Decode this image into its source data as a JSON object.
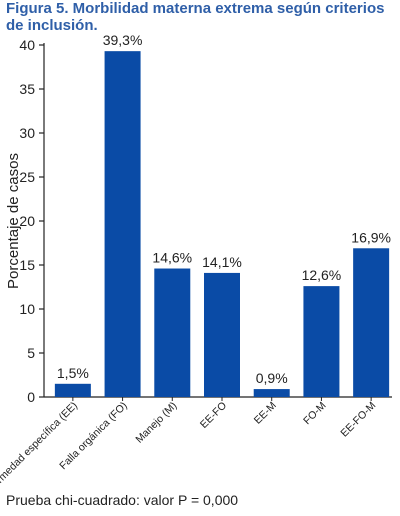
{
  "title": "Figura 5. Morbilidad materna extrema según criterios de inclusión.",
  "footnote": "Prueba chi-cuadrado: valor P = 0,000",
  "colors": {
    "bar": "#0a4ba6",
    "title": "#2f5fa8",
    "axis": "#222222"
  },
  "chart_data": {
    "type": "bar",
    "title": "Figura 5. Morbilidad materna extrema según criterios de inclusión.",
    "xlabel": "",
    "ylabel": "Porcentaje de casos",
    "ylim": [
      0,
      40
    ],
    "yticks": [
      "0",
      "5",
      "10",
      "15",
      "20",
      "25",
      "30",
      "35",
      "40"
    ],
    "grid": false,
    "categories": [
      "Enfermedad específica (EE)",
      "Falla orgánica (FO)",
      "Manejo (M)",
      "EE-FO",
      "EE-M",
      "FO-M",
      "EE-FO-M"
    ],
    "values": [
      1.5,
      39.3,
      14.6,
      14.1,
      0.9,
      12.6,
      16.9
    ],
    "data_labels": [
      "1,5%",
      "39,3%",
      "14,6%",
      "14,1%",
      "0,9%",
      "12,6%",
      "16,9%"
    ]
  }
}
